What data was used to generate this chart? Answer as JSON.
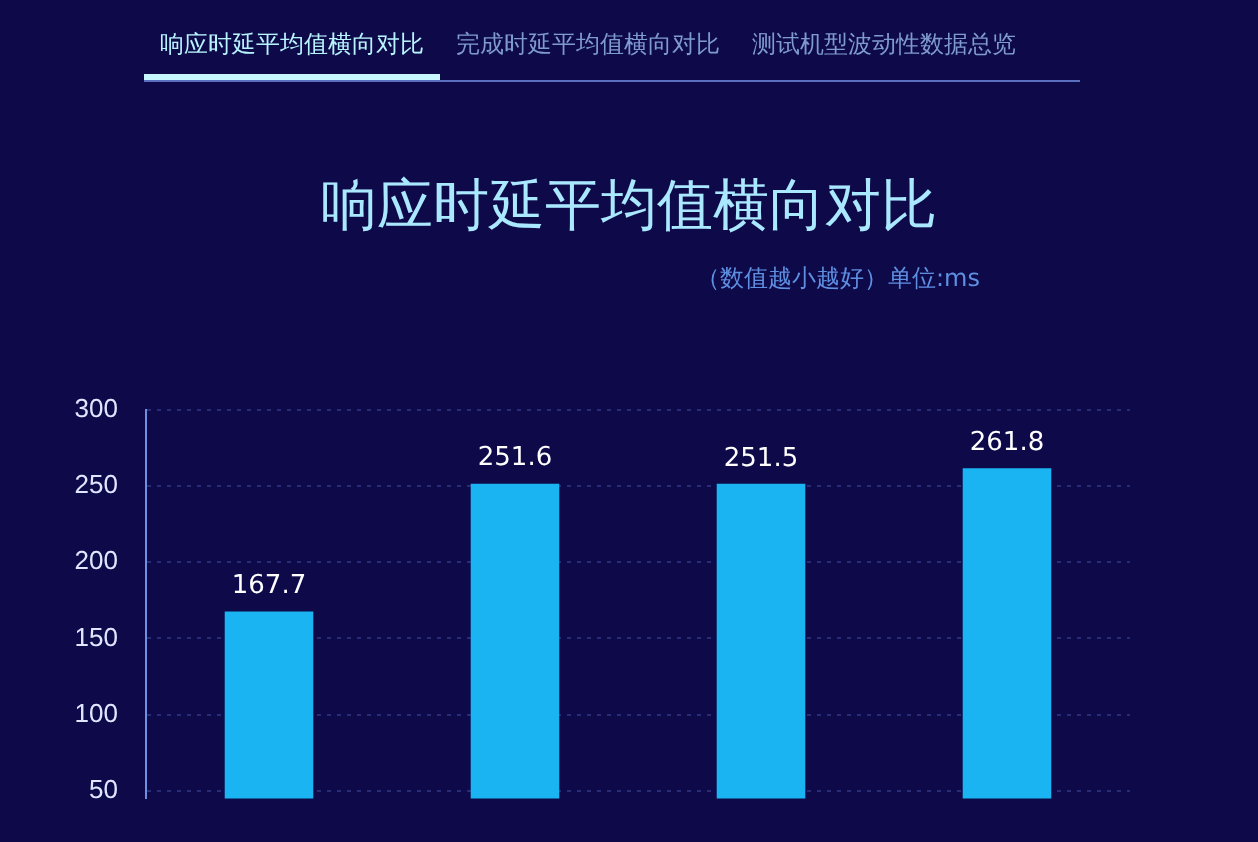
{
  "chart_data": {
    "type": "bar",
    "title": "响应时延平均值横向对比",
    "subtitle": "（数值越小越好）单位:ms",
    "annotations": [
      "响应时延平均值横向对比",
      "完成时延平均值横向对比",
      "测试机型波动性数据总览"
    ],
    "categories": [
      null,
      null,
      null,
      null
    ],
    "values": [
      167.7,
      251.6,
      251.5,
      261.8
    ],
    "color": "#1ab4f2",
    "ylim": [
      45,
      300
    ],
    "yticks": [
      50,
      100,
      150,
      200,
      250,
      300
    ],
    "grid": "y",
    "legend": false,
    "data_labels": true
  }
}
